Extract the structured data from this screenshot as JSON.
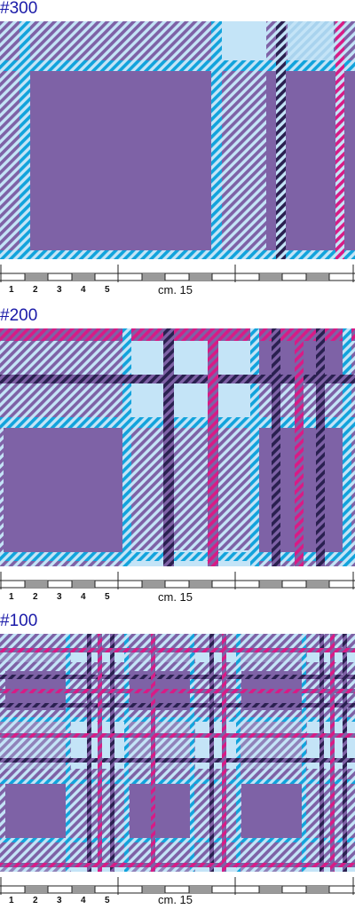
{
  "colors": {
    "purple": "#7e62a6",
    "light_blue": "#c4e4f7",
    "blue": "#12a3dc",
    "navy": "#2a2050",
    "magenta": "#d81b86",
    "title_blue": "#1a1aa8"
  },
  "sections": [
    {
      "title": "#300",
      "ruler": {
        "numbers": [
          "1",
          "2",
          "3",
          "4",
          "5"
        ],
        "cm_label": "cm. 15"
      }
    },
    {
      "title": "#200",
      "ruler": {
        "numbers": [
          "1",
          "2",
          "3",
          "4",
          "5"
        ],
        "cm_label": "cm. 15"
      }
    },
    {
      "title": "#100",
      "ruler": {
        "numbers": [
          "1",
          "2",
          "3",
          "4",
          "5"
        ],
        "cm_label": "cm. 15"
      }
    }
  ]
}
